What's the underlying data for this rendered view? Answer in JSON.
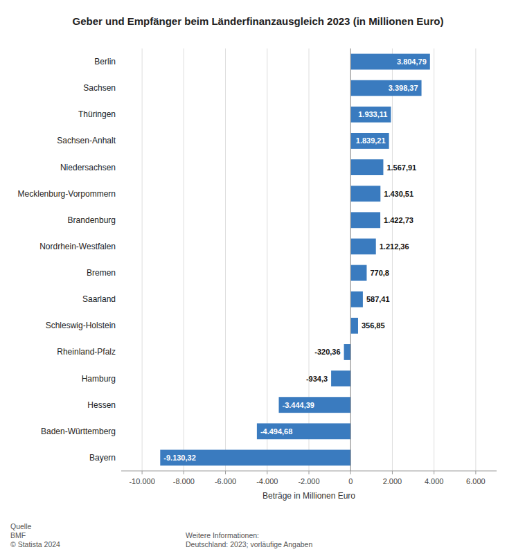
{
  "chart_data": {
    "type": "bar",
    "orientation": "horizontal",
    "title": "Geber und Empfänger beim Länderfinanzausgleich 2023 (in Millionen Euro)",
    "categories": [
      "Bayern",
      "Baden-Württemberg",
      "Hessen",
      "Hamburg",
      "Rheinland-Pfalz",
      "Schleswig-Holstein",
      "Saarland",
      "Bremen",
      "Nordrhein-Westfalen",
      "Brandenburg",
      "Mecklenburg-Vorpommern",
      "Niedersachsen",
      "Sachsen-Anhalt",
      "Thüringen",
      "Sachsen",
      "Berlin"
    ],
    "values": [
      -9130.32,
      -4494.68,
      -3444.39,
      -934.3,
      -320.36,
      356.85,
      587.41,
      770.8,
      1212.36,
      1422.73,
      1430.51,
      1567.91,
      1839.21,
      1933.11,
      3398.37,
      3804.79
    ],
    "value_labels": [
      "-9.130,32",
      "-4.494,68",
      "-3.444,39",
      "-934,3",
      "-320,36",
      "356,85",
      "587,41",
      "770,8",
      "1.212,36",
      "1.422,73",
      "1.430,51",
      "1.567,91",
      "1.839,21",
      "1.933,11",
      "3.398,37",
      "3.804,79"
    ],
    "data_labels": true,
    "color": "#3a7bbf",
    "xlabel": "Beträge in Millionen Euro",
    "xlim": [
      -11000,
      7000
    ],
    "xticks": [
      {
        "value": -10000,
        "label": "-10.000"
      },
      {
        "value": -8000,
        "label": "-8.000"
      },
      {
        "value": -6000,
        "label": "-6.000"
      },
      {
        "value": -4000,
        "label": "-4.000"
      },
      {
        "value": -2000,
        "label": "-2.000"
      },
      0,
      {
        "value": 2000,
        "label": "2.000"
      },
      {
        "value": 4000,
        "label": "4.000"
      },
      {
        "value": 6000,
        "label": "6.000"
      }
    ],
    "grid": true,
    "annotations": [
      "Quelle\nBMF\n© Statista 2024",
      "Weitere Informationen:\nDeutschland: 2023; vorläufige Angaben"
    ]
  }
}
